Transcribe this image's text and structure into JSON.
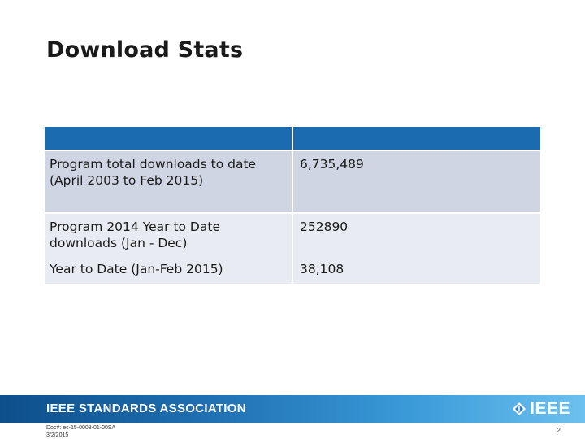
{
  "slide": {
    "title": "Download Stats"
  },
  "table": {
    "header": [
      "",
      ""
    ],
    "rows": [
      {
        "label": "Program total downloads to date (April 2003 to Feb 2015)",
        "value": "6,735,489"
      },
      {
        "label": "Program 2014 Year to Date downloads (Jan - Dec)",
        "value": "252890"
      },
      {
        "label": "Year to Date (Jan-Feb 2015)",
        "value": "38,108"
      }
    ]
  },
  "footer": {
    "brand": "IEEE STANDARDS ASSOCIATION",
    "logo_text": "IEEE",
    "doc_number": "Doc#: ec-15-0008-01-00SA",
    "date": "3/2/2015",
    "page_number": "2"
  },
  "colors": {
    "header_blue": "#1b6bb0",
    "row_dark": "#cfd5e2",
    "row_light": "#e8ebf1"
  }
}
